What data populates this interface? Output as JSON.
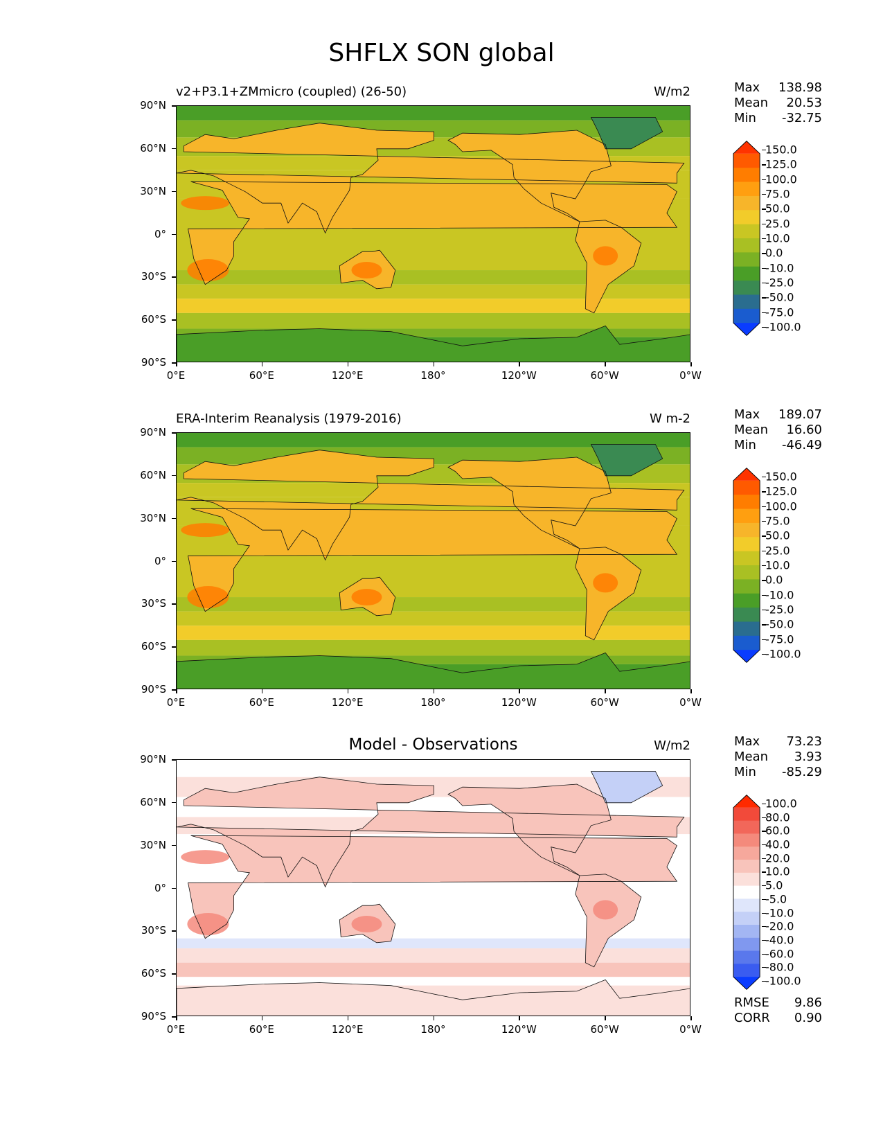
{
  "suptitle": "SHFLX SON global",
  "x_ticks": [
    "0°E",
    "60°E",
    "120°E",
    "180°",
    "120°W",
    "60°W",
    "0°W"
  ],
  "y_ticks": [
    "90°N",
    "60°N",
    "30°N",
    "0°",
    "30°S",
    "60°S",
    "90°S"
  ],
  "panels": [
    {
      "left_title": "v2+P3.1+ZMmicro (coupled) (26-50)",
      "center_title": "",
      "units": "W/m2",
      "stats": {
        "max_label": "Max",
        "max": "138.98",
        "mean_label": "Mean",
        "mean": "20.53",
        "min_label": "Min",
        "min": "-32.75"
      },
      "levels": [
        "150.0",
        "125.0",
        "100.0",
        "75.0",
        "50.0",
        "25.0",
        "10.0",
        "0.0",
        "-10.0",
        "-25.0",
        "-50.0",
        "-75.0",
        "-100.0"
      ],
      "colors": [
        "#ff3300",
        "#ff5a00",
        "#ff7d00",
        "#ff9f10",
        "#f7b52a",
        "#f2cc2a",
        "#c9c623",
        "#a9c023",
        "#7bb124",
        "#4a9e27",
        "#3a8a52",
        "#2a6d8f",
        "#1a5ccf",
        "#0a3cff"
      ]
    },
    {
      "left_title": "ERA-Interim Reanalysis (1979-2016)",
      "center_title": "",
      "units": "W m-2",
      "stats": {
        "max_label": "Max",
        "max": "189.07",
        "mean_label": "Mean",
        "mean": "16.60",
        "min_label": "Min",
        "min": "-46.49"
      },
      "levels": [
        "150.0",
        "125.0",
        "100.0",
        "75.0",
        "50.0",
        "25.0",
        "10.0",
        "0.0",
        "-10.0",
        "-25.0",
        "-50.0",
        "-75.0",
        "-100.0"
      ],
      "colors": [
        "#ff3300",
        "#ff5a00",
        "#ff7d00",
        "#ff9f10",
        "#f7b52a",
        "#f2cc2a",
        "#c9c623",
        "#a9c023",
        "#7bb124",
        "#4a9e27",
        "#3a8a52",
        "#2a6d8f",
        "#1a5ccf",
        "#0a3cff"
      ]
    },
    {
      "left_title": "",
      "center_title": "Model - Observations",
      "units": "W/m2",
      "stats": {
        "max_label": "Max",
        "max": "73.23",
        "mean_label": "Mean",
        "mean": "3.93",
        "min_label": "Min",
        "min": "-85.29"
      },
      "levels": [
        "100.0",
        "80.0",
        "60.0",
        "40.0",
        "20.0",
        "10.0",
        "5.0",
        "-5.0",
        "-10.0",
        "-20.0",
        "-40.0",
        "-60.0",
        "-80.0",
        "-100.0"
      ],
      "colors": [
        "#ff2a00",
        "#f24a3a",
        "#f2675a",
        "#f48a7c",
        "#f6a89c",
        "#f8c4bb",
        "#fbe0db",
        "#ffffff",
        "#dfe6fb",
        "#c4d0f7",
        "#a3b6f3",
        "#8098ef",
        "#5a78ec",
        "#3a5cf0",
        "#0a3cff"
      ],
      "extra": {
        "rmse_label": "RMSE",
        "rmse": "9.86",
        "corr_label": "CORR",
        "corr": "0.90"
      }
    }
  ]
}
